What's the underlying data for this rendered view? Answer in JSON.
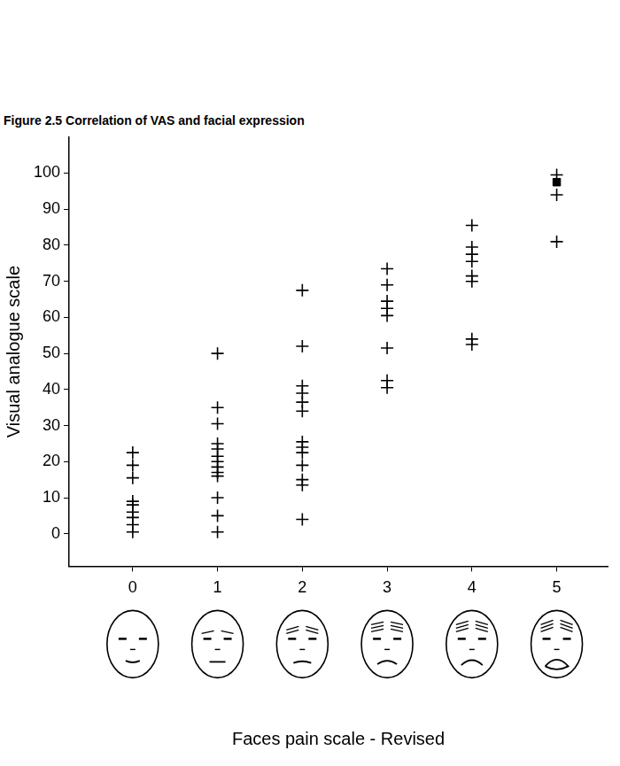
{
  "chart_data": {
    "type": "scatter",
    "title": "Figure 2.5 Correlation of VAS and facial expression",
    "x_label": "Faces pain scale - Revised",
    "y_label": "Visual analogue scale",
    "xlim": [
      -0.75,
      5.6
    ],
    "xticks": [
      0,
      1,
      2,
      3,
      4,
      5
    ],
    "ylim": [
      -9,
      110
    ],
    "yticks": [
      0,
      10,
      20,
      30,
      40,
      50,
      60,
      70,
      80,
      90,
      100
    ],
    "grid": false,
    "series": [
      {
        "color": "#000000",
        "marker": "cross",
        "x": [
          0,
          0,
          0,
          0,
          0,
          0,
          0,
          0,
          0,
          1,
          1,
          1,
          1,
          1,
          1,
          1,
          1,
          1,
          1,
          1,
          1,
          1,
          2,
          2,
          2,
          2,
          2,
          2,
          2,
          2,
          2,
          2,
          2,
          2,
          2,
          3,
          3,
          3,
          3,
          3,
          3,
          3,
          3,
          4,
          4,
          4,
          4,
          4,
          4,
          4,
          4,
          5,
          5,
          5
        ],
        "values": [
          22.5,
          19,
          15.5,
          9,
          8,
          6,
          4.5,
          2.5,
          0.5,
          50,
          35,
          30.5,
          25,
          23.5,
          21.5,
          20,
          18.5,
          17,
          16,
          10,
          5,
          0.5,
          67.5,
          52,
          41,
          39,
          36.5,
          34,
          25.5,
          24,
          22.5,
          19,
          15,
          13.5,
          4,
          73.5,
          69,
          64.5,
          62.5,
          60.5,
          51.5,
          42.5,
          40.5,
          85.5,
          79.5,
          77.5,
          75.5,
          71.5,
          70,
          54,
          52.5,
          99.5,
          94,
          81
        ]
      },
      {
        "color": "#000000",
        "marker": "square",
        "x": [
          5
        ],
        "values": [
          97.5
        ]
      }
    ]
  }
}
